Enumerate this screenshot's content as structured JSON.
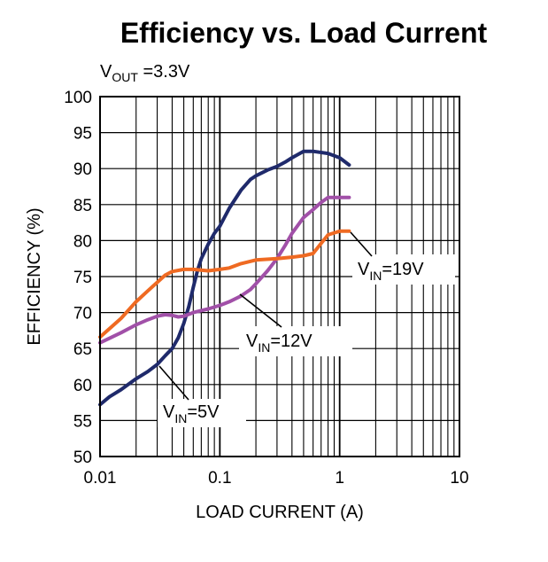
{
  "chart_data": {
    "type": "line",
    "title": "Efficiency vs. Load Current",
    "subtitle": {
      "main": "V",
      "sub": "OUT",
      "rest": " =3.3V"
    },
    "xlabel": "LOAD CURRENT (A)",
    "ylabel": "EFFICIENCY (%)",
    "xscale": "log",
    "xlim": [
      0.01,
      10
    ],
    "ylim": [
      50,
      100
    ],
    "x_ticks": [
      0.01,
      0.1,
      1,
      10
    ],
    "x_tick_labels": [
      "0.01",
      "0.1",
      "1",
      "10"
    ],
    "y_ticks": [
      50,
      55,
      60,
      65,
      70,
      75,
      80,
      85,
      90,
      95,
      100
    ],
    "y_tick_labels": [
      "50",
      "55",
      "60",
      "65",
      "70",
      "75",
      "80",
      "85",
      "90",
      "95",
      "100"
    ],
    "grid": true,
    "series": [
      {
        "name": "VIN=5V",
        "label": {
          "main": "V",
          "sub": "IN",
          "rest": "=5V"
        },
        "color": "#1f2a6b",
        "points": [
          [
            0.01,
            57.2
          ],
          [
            0.012,
            58.3
          ],
          [
            0.015,
            59.3
          ],
          [
            0.02,
            60.8
          ],
          [
            0.025,
            61.8
          ],
          [
            0.03,
            62.8
          ],
          [
            0.035,
            64.0
          ],
          [
            0.04,
            65.0
          ],
          [
            0.045,
            66.5
          ],
          [
            0.05,
            68.5
          ],
          [
            0.055,
            70.8
          ],
          [
            0.06,
            73.5
          ],
          [
            0.065,
            75.8
          ],
          [
            0.07,
            77.5
          ],
          [
            0.08,
            79.5
          ],
          [
            0.09,
            81.0
          ],
          [
            0.1,
            82.0
          ],
          [
            0.12,
            84.5
          ],
          [
            0.15,
            87.0
          ],
          [
            0.18,
            88.5
          ],
          [
            0.2,
            89.0
          ],
          [
            0.25,
            89.8
          ],
          [
            0.3,
            90.3
          ],
          [
            0.35,
            90.9
          ],
          [
            0.4,
            91.5
          ],
          [
            0.5,
            92.4
          ],
          [
            0.6,
            92.4
          ],
          [
            0.8,
            92.1
          ],
          [
            1.0,
            91.5
          ],
          [
            1.2,
            90.5
          ]
        ]
      },
      {
        "name": "VIN=12V",
        "label": {
          "main": "V",
          "sub": "IN",
          "rest": "=12V"
        },
        "color": "#a150a8",
        "points": [
          [
            0.01,
            65.8
          ],
          [
            0.015,
            67.2
          ],
          [
            0.02,
            68.3
          ],
          [
            0.025,
            69.0
          ],
          [
            0.03,
            69.5
          ],
          [
            0.035,
            69.7
          ],
          [
            0.04,
            69.6
          ],
          [
            0.045,
            69.4
          ],
          [
            0.05,
            69.5
          ],
          [
            0.06,
            70.0
          ],
          [
            0.08,
            70.5
          ],
          [
            0.1,
            71.0
          ],
          [
            0.12,
            71.5
          ],
          [
            0.15,
            72.3
          ],
          [
            0.18,
            73.2
          ],
          [
            0.2,
            74.0
          ],
          [
            0.25,
            75.8
          ],
          [
            0.3,
            77.5
          ],
          [
            0.35,
            79.3
          ],
          [
            0.4,
            81.0
          ],
          [
            0.5,
            83.2
          ],
          [
            0.6,
            84.3
          ],
          [
            0.7,
            85.3
          ],
          [
            0.8,
            86.0
          ],
          [
            1.0,
            86.0
          ],
          [
            1.2,
            86.0
          ]
        ]
      },
      {
        "name": "VIN=19V",
        "label": {
          "main": "V",
          "sub": "IN",
          "rest": "=19V"
        },
        "color": "#ef6a22",
        "points": [
          [
            0.01,
            66.6
          ],
          [
            0.015,
            69.2
          ],
          [
            0.02,
            71.5
          ],
          [
            0.025,
            73.0
          ],
          [
            0.03,
            74.2
          ],
          [
            0.035,
            75.2
          ],
          [
            0.04,
            75.7
          ],
          [
            0.05,
            76.0
          ],
          [
            0.06,
            76.0
          ],
          [
            0.07,
            75.9
          ],
          [
            0.08,
            75.8
          ],
          [
            0.1,
            76.0
          ],
          [
            0.12,
            76.2
          ],
          [
            0.15,
            76.8
          ],
          [
            0.2,
            77.3
          ],
          [
            0.3,
            77.5
          ],
          [
            0.4,
            77.7
          ],
          [
            0.5,
            77.9
          ],
          [
            0.6,
            78.2
          ],
          [
            0.7,
            79.6
          ],
          [
            0.8,
            80.8
          ],
          [
            1.0,
            81.3
          ],
          [
            1.2,
            81.3
          ]
        ]
      }
    ]
  }
}
